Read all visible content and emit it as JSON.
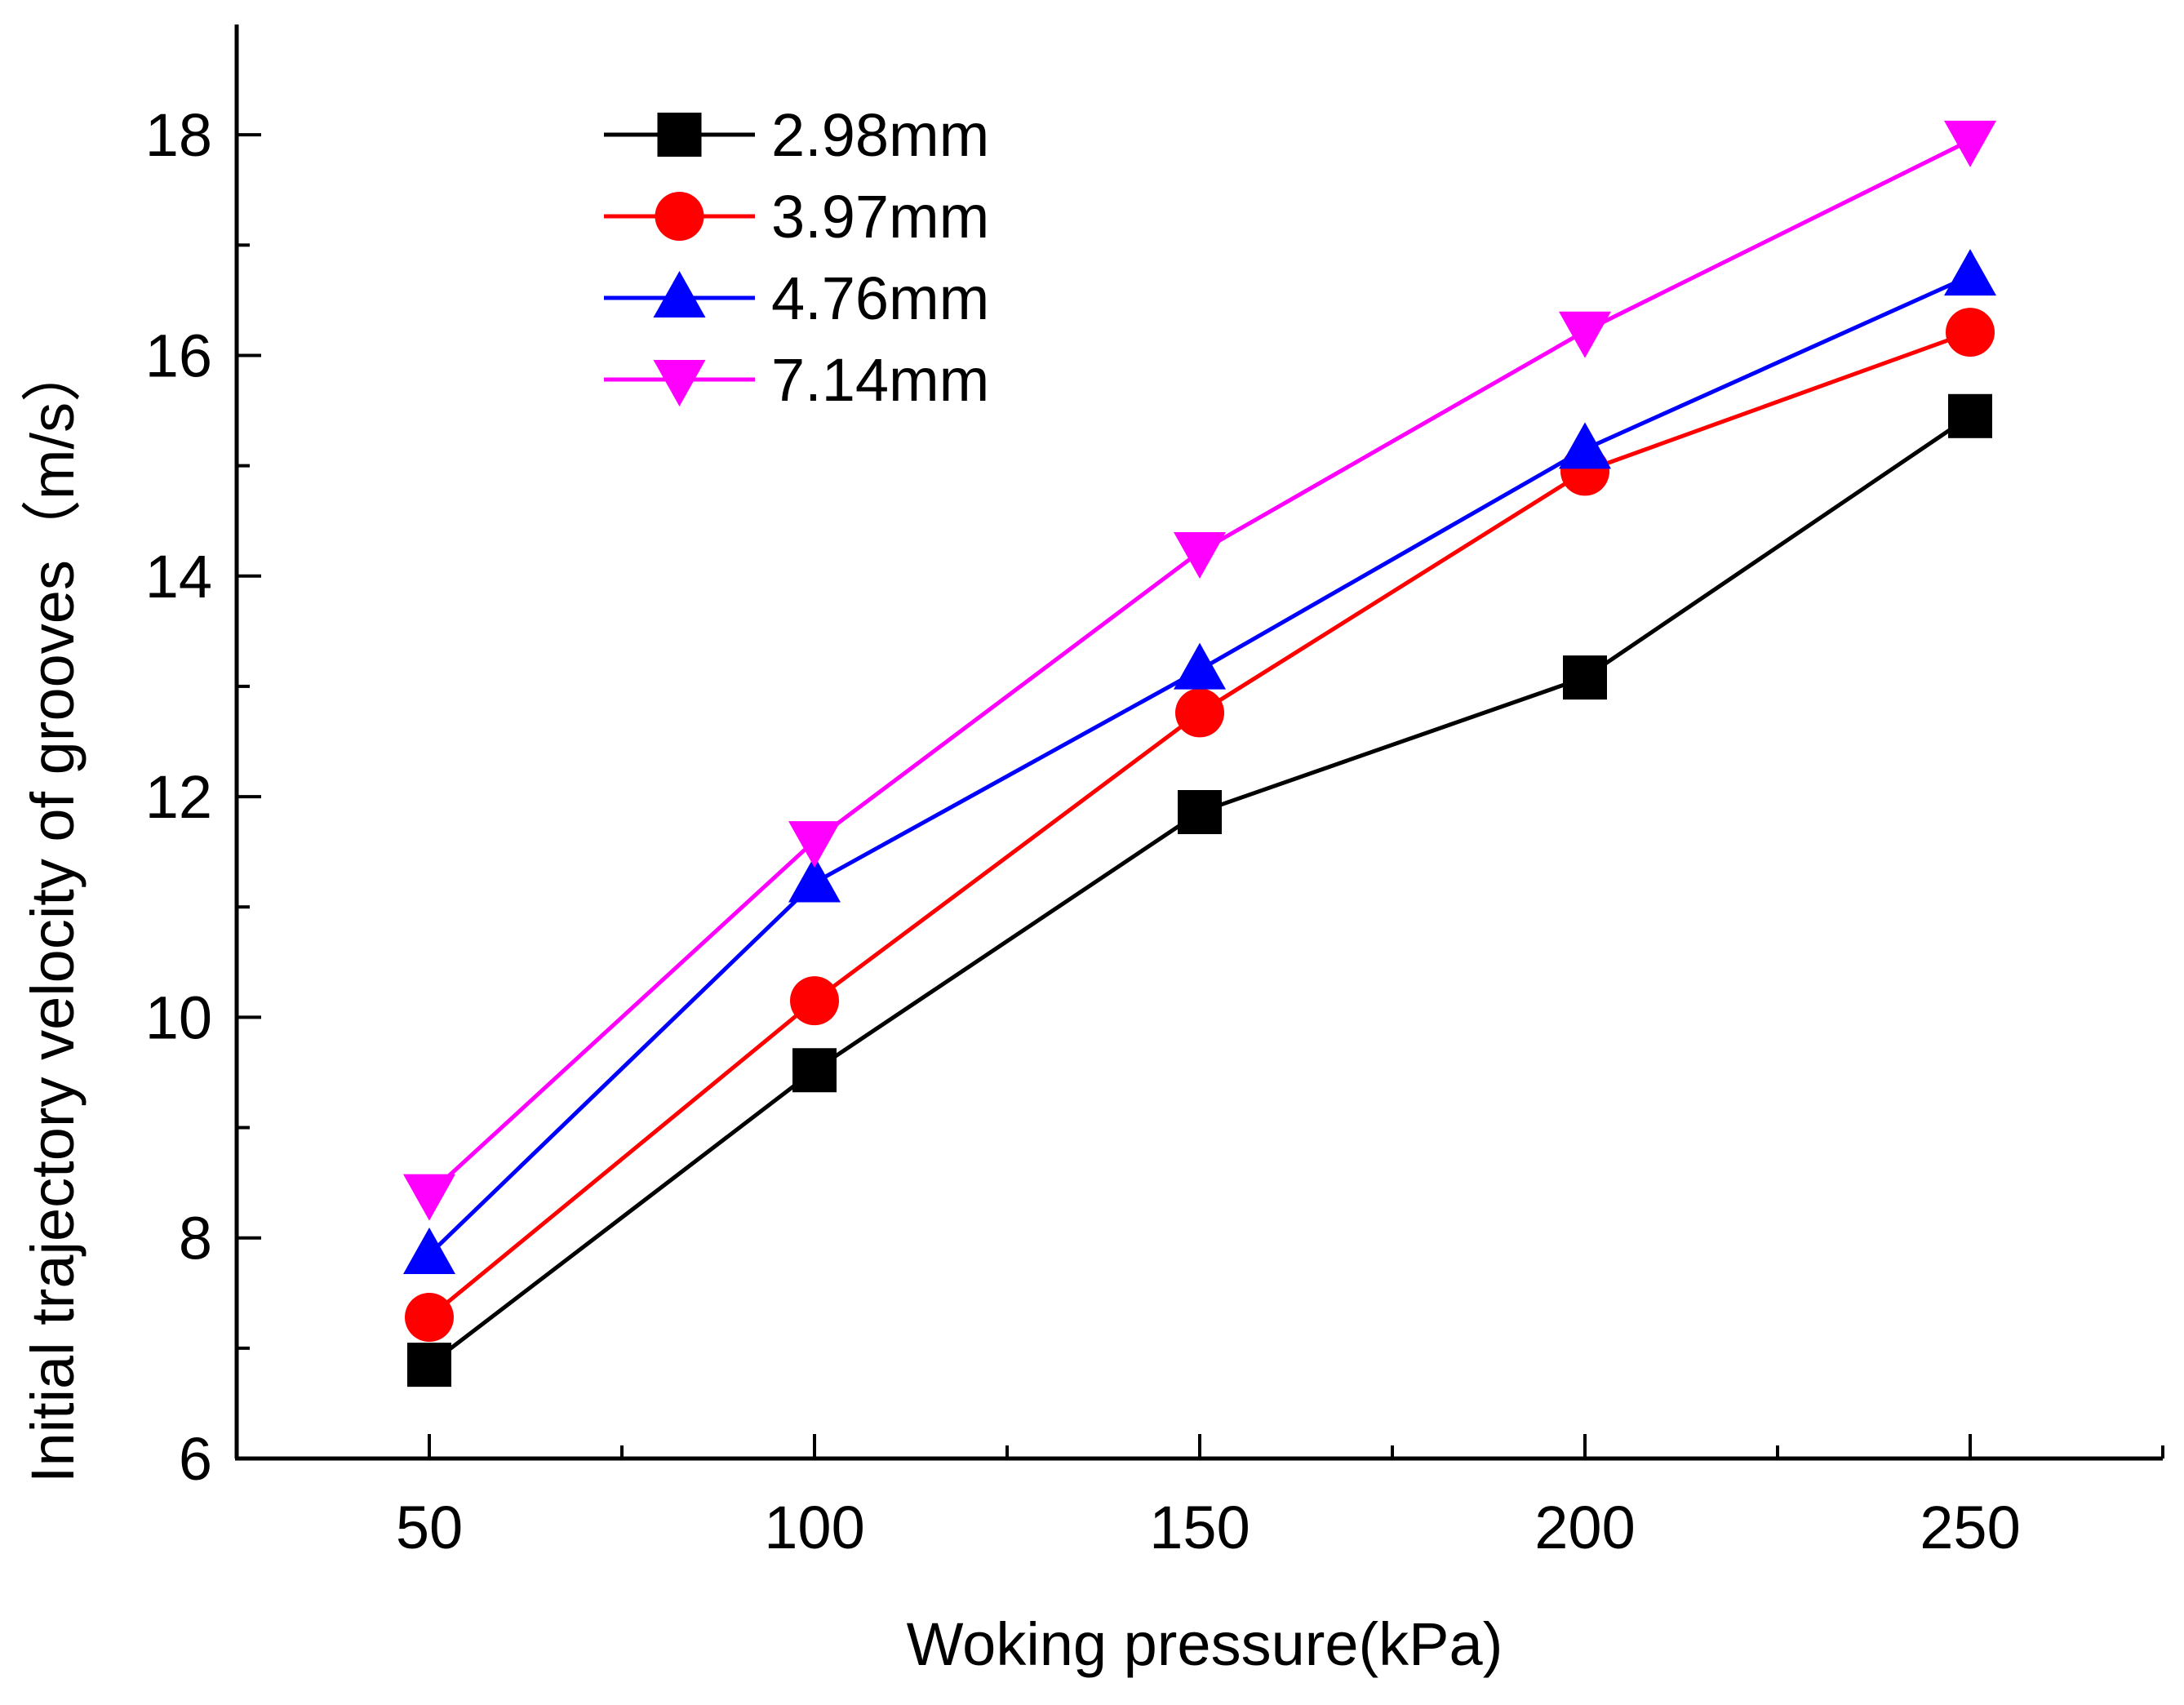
{
  "chart_data": {
    "type": "line",
    "title": "",
    "xlabel": "Woking pressure(kPa)",
    "ylabel": "Initial trajectory velocity of grooves（m/s）",
    "x": [
      50,
      100,
      150,
      200,
      250
    ],
    "xlim": [
      25,
      275
    ],
    "ylim": [
      6,
      19
    ],
    "xticks": [
      50,
      100,
      150,
      200,
      250
    ],
    "xticks_minor": [
      75,
      125,
      175,
      225,
      275
    ],
    "yticks": [
      6,
      8,
      10,
      12,
      14,
      16,
      18
    ],
    "yticks_minor": [
      7,
      9,
      11,
      13,
      15,
      17
    ],
    "grid": false,
    "legend_position": "top-left",
    "series": [
      {
        "name": "2.98mm",
        "color": "#000000",
        "marker": "square",
        "values": [
          6.85,
          9.52,
          11.86,
          13.08,
          15.45
        ]
      },
      {
        "name": "3.97mm",
        "color": "#ff0000",
        "marker": "circle",
        "values": [
          7.28,
          10.15,
          12.76,
          14.95,
          16.21
        ]
      },
      {
        "name": "4.76mm",
        "color": "#0000ff",
        "marker": "triangle-up",
        "values": [
          7.85,
          11.22,
          13.15,
          15.15,
          16.72
        ]
      },
      {
        "name": "7.14mm",
        "color": "#ff00ff",
        "marker": "triangle-down",
        "values": [
          8.4,
          11.6,
          14.22,
          16.22,
          17.95
        ]
      }
    ]
  }
}
